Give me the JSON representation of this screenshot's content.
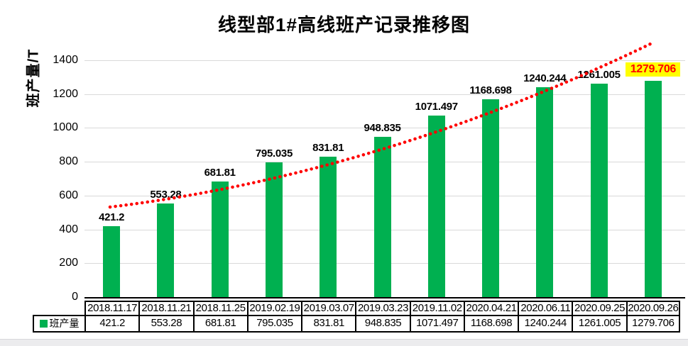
{
  "title": "线型部1#高线班产记录推移图",
  "y_axis_label": "班产量/T",
  "legend_label": "班产量",
  "colors": {
    "bar": "#00B050",
    "trendline": "#FF0000",
    "gridline": "#D9D9D9",
    "highlight_background": "#FFFF00",
    "highlight_text": "#FF0000"
  },
  "chart_data": {
    "type": "bar",
    "title": "线型部1#高线班产记录推移图",
    "xlabel": "",
    "ylabel": "班产量/T",
    "ylim": [
      0,
      1400
    ],
    "y_ticks": [
      0,
      200,
      400,
      600,
      800,
      1000,
      1200,
      1400
    ],
    "grid": true,
    "legend_position": "bottom-left",
    "categories": [
      "2018.11.17",
      "2018.11.21",
      "2018.11.25",
      "2019.02.19",
      "2019.03.07",
      "2019.03.23",
      "2019.11.02",
      "2020.04.21",
      "2020.06.11",
      "2020.09.25",
      "2020.09.26"
    ],
    "series": [
      {
        "name": "班产量",
        "color": "#00B050",
        "values": [
          421.2,
          553.28,
          681.81,
          795.035,
          831.81,
          948.835,
          1071.497,
          1168.698,
          1240.244,
          1261.005,
          1279.706
        ]
      }
    ],
    "data_table_shown": true,
    "highlight": {
      "index": 10,
      "background": "#FFFF00",
      "text_color": "#FF0000"
    },
    "trendline": {
      "style": "dotted",
      "color": "#FF0000"
    }
  }
}
